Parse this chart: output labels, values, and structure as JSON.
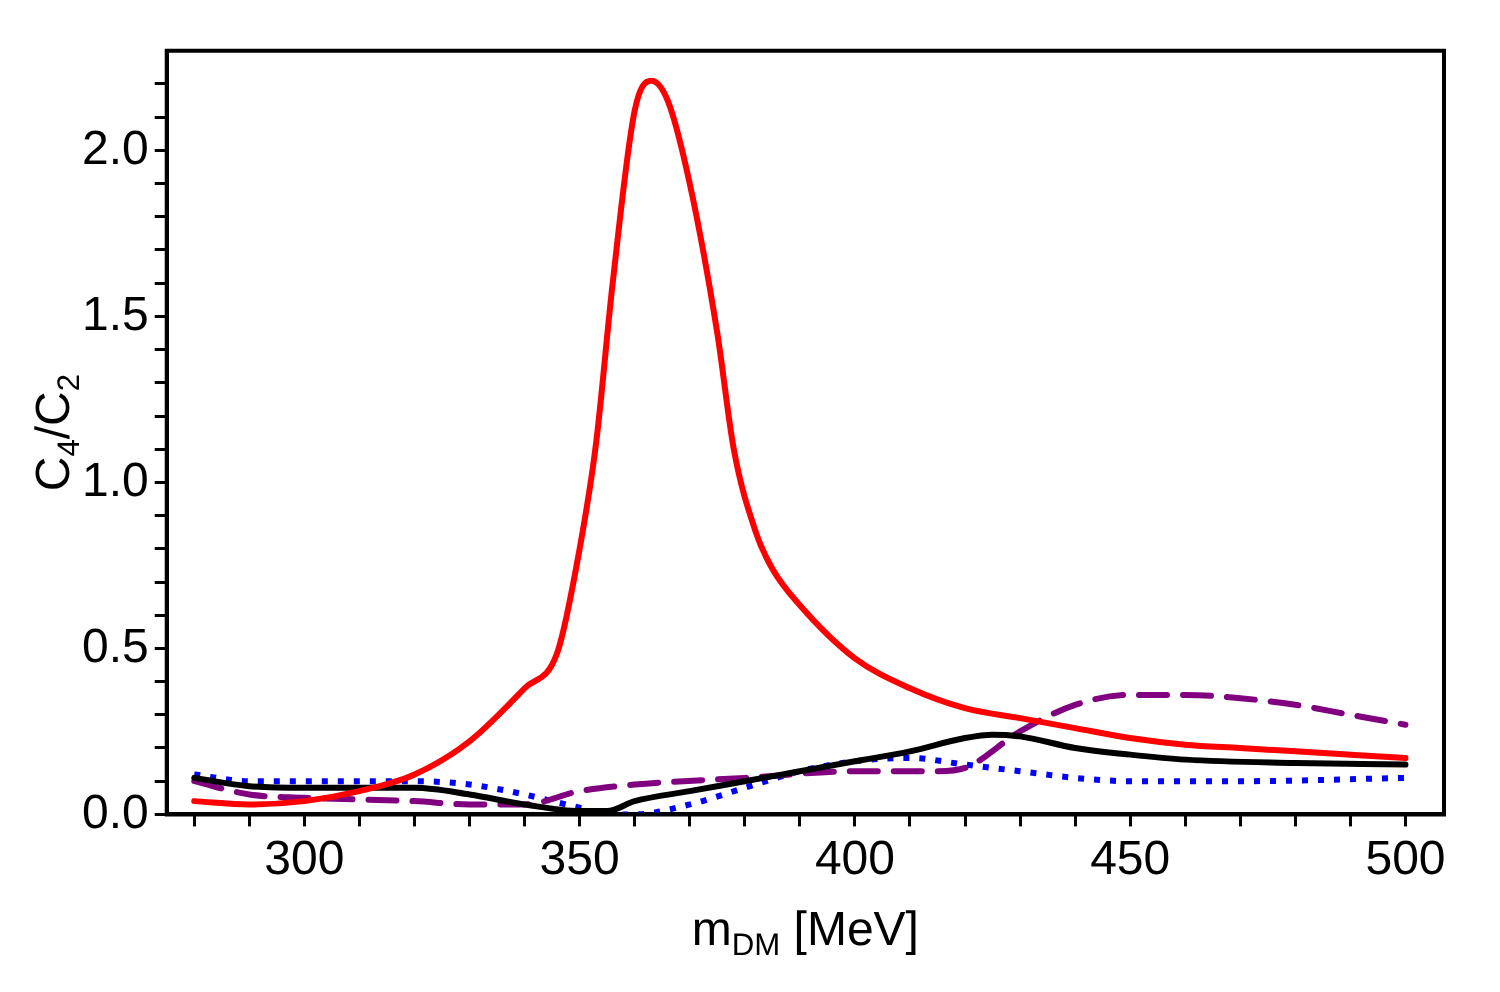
{
  "chart_data": {
    "type": "line",
    "xlabel": "m$_{DM}$ [MeV]",
    "ylabel": "C$_{4}$/C$_{2}$",
    "grid": false,
    "legend": false,
    "marker": "none",
    "xlim": [
      275,
      507
    ],
    "ylim": [
      0,
      2.3
    ],
    "xticks": [
      {
        "value": 280,
        "label": null
      },
      {
        "value": 290,
        "label": null
      },
      300,
      {
        "value": 310,
        "label": null
      },
      {
        "value": 320,
        "label": null
      },
      {
        "value": 330,
        "label": null
      },
      {
        "value": 340,
        "label": null
      },
      350,
      {
        "value": 360,
        "label": null
      },
      {
        "value": 370,
        "label": null
      },
      {
        "value": 380,
        "label": null
      },
      {
        "value": 390,
        "label": null
      },
      400,
      {
        "value": 410,
        "label": null
      },
      {
        "value": 420,
        "label": null
      },
      {
        "value": 430,
        "label": null
      },
      {
        "value": 440,
        "label": null
      },
      450,
      {
        "value": 460,
        "label": null
      },
      {
        "value": 470,
        "label": null
      },
      {
        "value": 480,
        "label": null
      },
      {
        "value": 490,
        "label": null
      },
      500
    ],
    "yticks": [
      {
        "value": 0,
        "label": "0.0"
      },
      {
        "value": 0.1,
        "label": null
      },
      {
        "value": 0.2,
        "label": null
      },
      {
        "value": 0.3,
        "label": null
      },
      {
        "value": 0.4,
        "label": null
      },
      0.5,
      {
        "value": 0.6,
        "label": null
      },
      {
        "value": 0.7,
        "label": null
      },
      {
        "value": 0.8,
        "label": null
      },
      {
        "value": 0.9,
        "label": null
      },
      {
        "value": 1,
        "label": "1.0"
      },
      {
        "value": 1.1,
        "label": null
      },
      {
        "value": 1.2,
        "label": null
      },
      {
        "value": 1.3,
        "label": null
      },
      {
        "value": 1.4,
        "label": null
      },
      1.5,
      {
        "value": 1.6,
        "label": null
      },
      {
        "value": 1.7,
        "label": null
      },
      {
        "value": 1.8,
        "label": null
      },
      {
        "value": 1.9,
        "label": null
      },
      {
        "value": 2,
        "label": "2.0"
      },
      {
        "value": 2.1,
        "label": null
      },
      {
        "value": 2.2,
        "label": null
      }
    ],
    "series": [
      {
        "color": "#ff0000",
        "line_style": "solid",
        "x": [
          280,
          290,
          300,
          310,
          320,
          330,
          340,
          346,
          350,
          353,
          356,
          360,
          363,
          366,
          370,
          375,
          378,
          382,
          385,
          390,
          400,
          410,
          420,
          430,
          440,
          450,
          460,
          470,
          480,
          490,
          500
        ],
        "values": [
          0.04,
          0.03,
          0.04,
          0.07,
          0.12,
          0.22,
          0.38,
          0.49,
          0.8,
          1.12,
          1.6,
          2.12,
          2.21,
          2.15,
          1.9,
          1.45,
          1.1,
          0.85,
          0.74,
          0.63,
          0.47,
          0.38,
          0.32,
          0.29,
          0.26,
          0.23,
          0.21,
          0.2,
          0.19,
          0.18,
          0.17
        ]
      },
      {
        "color": "#000000",
        "line_style": "solid",
        "x": [
          280,
          290,
          300,
          310,
          320,
          330,
          340,
          350,
          355,
          360,
          370,
          380,
          390,
          400,
          410,
          420,
          425,
          430,
          440,
          450,
          460,
          480,
          500
        ],
        "values": [
          0.11,
          0.085,
          0.08,
          0.08,
          0.08,
          0.06,
          0.03,
          0.01,
          0.01,
          0.04,
          0.07,
          0.1,
          0.13,
          0.16,
          0.19,
          0.23,
          0.24,
          0.235,
          0.2,
          0.18,
          0.165,
          0.155,
          0.15
        ]
      },
      {
        "color": "#800080",
        "line_style": "dashed",
        "x": [
          280,
          290,
          300,
          320,
          330,
          340,
          350,
          360,
          380,
          400,
          415,
          420,
          430,
          440,
          450,
          460,
          470,
          480,
          490,
          500
        ],
        "values": [
          0.1,
          0.06,
          0.05,
          0.04,
          0.03,
          0.03,
          0.07,
          0.09,
          0.11,
          0.13,
          0.13,
          0.14,
          0.25,
          0.33,
          0.36,
          0.36,
          0.35,
          0.33,
          0.3,
          0.27
        ]
      },
      {
        "color": "#0000ff",
        "line_style": "dotted",
        "x": [
          280,
          290,
          300,
          320,
          330,
          340,
          345,
          350,
          355,
          360,
          370,
          380,
          390,
          400,
          410,
          420,
          430,
          440,
          450,
          470,
          500
        ],
        "values": [
          0.12,
          0.1,
          0.1,
          0.1,
          0.09,
          0.06,
          0.04,
          0.02,
          0,
          0,
          0.03,
          0.08,
          0.13,
          0.16,
          0.17,
          0.15,
          0.13,
          0.11,
          0.1,
          0.1,
          0.11
        ]
      }
    ]
  }
}
